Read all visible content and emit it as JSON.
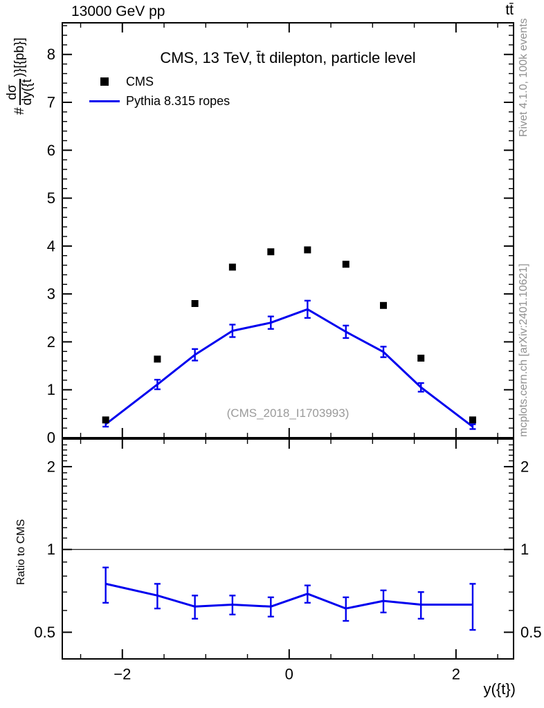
{
  "header": {
    "beam": "13000 GeV pp",
    "process": "tt̄"
  },
  "title": "CMS, 13 TeV, t̄t dilepton, particle level",
  "watermark": "(CMS_2018_I1703993)",
  "side_notes": {
    "top": "Rivet 4.1.0,  100k events",
    "bottom": "mcplots.cern.ch [arXiv:2401.10621]"
  },
  "axis_labels": {
    "y_main_prefix": "#",
    "y_main_frac_num": "dσ",
    "y_main_frac_den": "dy({t̄",
    "y_main_suffix": ")}[{pb}]",
    "y_ratio": "Ratio to CMS",
    "x": "y({t})"
  },
  "legend": [
    {
      "label": "CMS",
      "marker": "square",
      "color": "#000000"
    },
    {
      "label": "Pythia 8.315 ropes",
      "marker": "line",
      "color": "#0000ee"
    }
  ],
  "colors": {
    "accent_blue": "#0000ee",
    "muted_text": "#8f8f8f",
    "watermark": "#9a9a9a",
    "axis": "#000000"
  },
  "chart_data": {
    "type": "line",
    "title": "CMS, 13 TeV, t̄t dilepton, particle level",
    "xlabel": "y({t})",
    "ylabel": "dσ/dy({t}) [pb]",
    "x": [
      -2.2,
      -1.58,
      -1.13,
      -0.68,
      -0.22,
      0.22,
      0.68,
      1.13,
      1.58,
      2.2
    ],
    "series": [
      {
        "name": "CMS",
        "type": "scatter-square",
        "color": "#000000",
        "values": [
          0.37,
          1.64,
          2.8,
          3.56,
          3.88,
          3.92,
          3.62,
          2.76,
          1.66,
          0.37
        ]
      },
      {
        "name": "Pythia 8.315 ropes",
        "type": "line-errorbar",
        "color": "#0000ee",
        "values": [
          0.28,
          1.11,
          1.73,
          2.23,
          2.4,
          2.68,
          2.21,
          1.79,
          1.05,
          0.23
        ],
        "errors": [
          0.05,
          0.1,
          0.12,
          0.13,
          0.13,
          0.18,
          0.13,
          0.11,
          0.09,
          0.05
        ]
      }
    ],
    "ratio": {
      "name": "Ratio to CMS",
      "reference": "CMS",
      "color": "#0000ee",
      "values": [
        0.75,
        0.68,
        0.62,
        0.63,
        0.62,
        0.69,
        0.61,
        0.65,
        0.63,
        0.63
      ],
      "errors": [
        0.11,
        0.07,
        0.06,
        0.05,
        0.05,
        0.05,
        0.06,
        0.06,
        0.07,
        0.12
      ],
      "reference_line": 1
    },
    "x_axis": {
      "min": -2.72,
      "max": 2.69,
      "major_ticks": [
        -2,
        0,
        2
      ],
      "minor_step": 0.5,
      "grid": false
    },
    "y_main_axis": {
      "scale": "linear",
      "min": 0,
      "max": 8.66,
      "labeled_ticks": [
        0,
        1,
        2,
        3,
        4,
        5,
        6,
        7,
        8
      ],
      "minor_step": 0.2
    },
    "y_ratio_axis": {
      "scale": "log",
      "min": 0.4,
      "max": 2.52,
      "labeled_ticks": [
        2,
        1,
        0.5
      ],
      "minor_step_log": 0.1
    }
  }
}
